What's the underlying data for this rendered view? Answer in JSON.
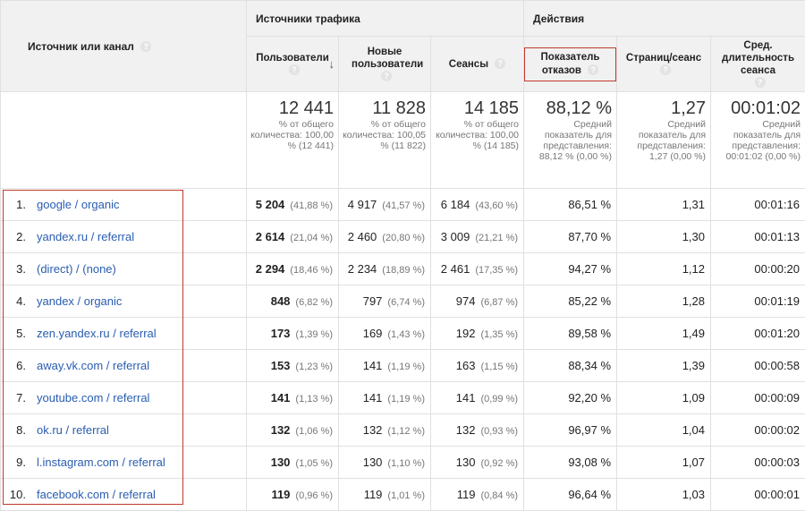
{
  "header": {
    "source_col": "Источник или канал",
    "group_traffic": "Источники трафика",
    "group_actions": "Действия",
    "columns": {
      "users": "Пользователи",
      "new_users": "Новые пользователи",
      "sessions": "Сеансы",
      "bounce": "Показатель отказов",
      "pages": "Страниц/сеанс",
      "duration": "Сред. длительность сеанса"
    },
    "help_glyph": "?"
  },
  "totals": {
    "users": {
      "value": "12 441",
      "note": "% от общего количества: 100,00 % (12 441)"
    },
    "new_users": {
      "value": "11 828",
      "note": "% от общего количества: 100,05 % (11 822)"
    },
    "sessions": {
      "value": "14 185",
      "note": "% от общего количества: 100,00 % (14 185)"
    },
    "bounce": {
      "value": "88,12 %",
      "note": "Средний показатель для представления: 88,12 % (0,00 %)"
    },
    "pages": {
      "value": "1,27",
      "note": "Средний показатель для представления: 1,27 (0,00 %)"
    },
    "duration": {
      "value": "00:01:02",
      "note": "Средний показатель для представления: 00:01:02 (0,00 %)"
    }
  },
  "rows": [
    {
      "n": "1.",
      "source": "google / organic",
      "users": "5 204",
      "users_pct": "(41,88 %)",
      "new": "4 917",
      "new_pct": "(41,57 %)",
      "sessions": "6 184",
      "sessions_pct": "(43,60 %)",
      "bounce": "86,51 %",
      "pages": "1,31",
      "duration": "00:01:16"
    },
    {
      "n": "2.",
      "source": "yandex.ru / referral",
      "users": "2 614",
      "users_pct": "(21,04 %)",
      "new": "2 460",
      "new_pct": "(20,80 %)",
      "sessions": "3 009",
      "sessions_pct": "(21,21 %)",
      "bounce": "87,70 %",
      "pages": "1,30",
      "duration": "00:01:13"
    },
    {
      "n": "3.",
      "source": "(direct) / (none)",
      "users": "2 294",
      "users_pct": "(18,46 %)",
      "new": "2 234",
      "new_pct": "(18,89 %)",
      "sessions": "2 461",
      "sessions_pct": "(17,35 %)",
      "bounce": "94,27 %",
      "pages": "1,12",
      "duration": "00:00:20"
    },
    {
      "n": "4.",
      "source": "yandex / organic",
      "users": "848",
      "users_pct": "(6,82 %)",
      "new": "797",
      "new_pct": "(6,74 %)",
      "sessions": "974",
      "sessions_pct": "(6,87 %)",
      "bounce": "85,22 %",
      "pages": "1,28",
      "duration": "00:01:19"
    },
    {
      "n": "5.",
      "source": "zen.yandex.ru / referral",
      "users": "173",
      "users_pct": "(1,39 %)",
      "new": "169",
      "new_pct": "(1,43 %)",
      "sessions": "192",
      "sessions_pct": "(1,35 %)",
      "bounce": "89,58 %",
      "pages": "1,49",
      "duration": "00:01:20"
    },
    {
      "n": "6.",
      "source": "away.vk.com / referral",
      "users": "153",
      "users_pct": "(1,23 %)",
      "new": "141",
      "new_pct": "(1,19 %)",
      "sessions": "163",
      "sessions_pct": "(1,15 %)",
      "bounce": "88,34 %",
      "pages": "1,39",
      "duration": "00:00:58"
    },
    {
      "n": "7.",
      "source": "youtube.com / referral",
      "users": "141",
      "users_pct": "(1,13 %)",
      "new": "141",
      "new_pct": "(1,19 %)",
      "sessions": "141",
      "sessions_pct": "(0,99 %)",
      "bounce": "92,20 %",
      "pages": "1,09",
      "duration": "00:00:09"
    },
    {
      "n": "8.",
      "source": "ok.ru / referral",
      "users": "132",
      "users_pct": "(1,06 %)",
      "new": "132",
      "new_pct": "(1,12 %)",
      "sessions": "132",
      "sessions_pct": "(0,93 %)",
      "bounce": "96,97 %",
      "pages": "1,04",
      "duration": "00:00:02"
    },
    {
      "n": "9.",
      "source": "l.instagram.com / referral",
      "users": "130",
      "users_pct": "(1,05 %)",
      "new": "130",
      "new_pct": "(1,10 %)",
      "sessions": "130",
      "sessions_pct": "(0,92 %)",
      "bounce": "93,08 %",
      "pages": "1,07",
      "duration": "00:00:03"
    },
    {
      "n": "10.",
      "source": "facebook.com / referral",
      "users": "119",
      "users_pct": "(0,96 %)",
      "new": "119",
      "new_pct": "(1,01 %)",
      "sessions": "119",
      "sessions_pct": "(0,84 %)",
      "bounce": "96,64 %",
      "pages": "1,03",
      "duration": "00:00:01"
    }
  ],
  "colors": {
    "link": "#2a5db0",
    "highlight_border": "#c0392b",
    "header_bg": "#f1f1f1"
  }
}
